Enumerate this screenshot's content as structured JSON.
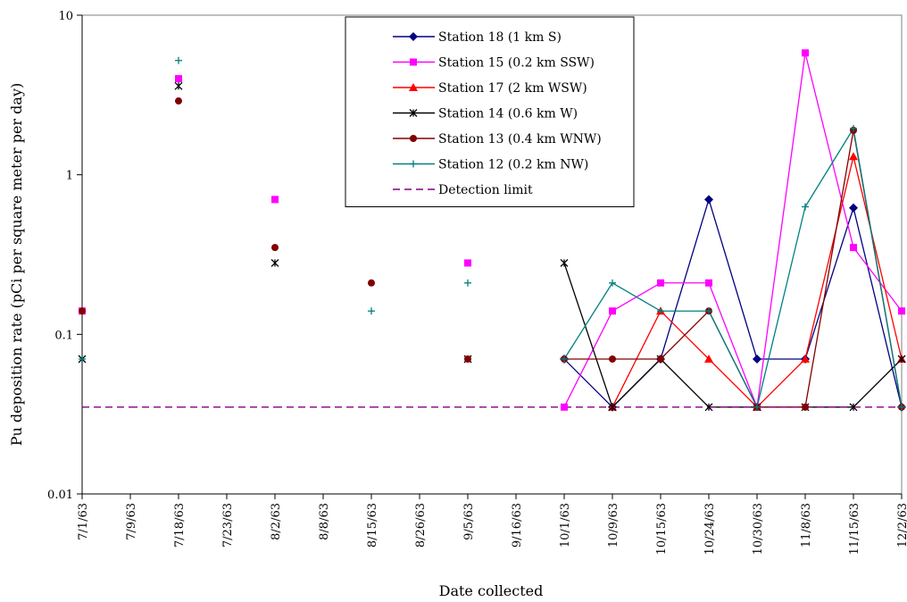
{
  "chart_data": {
    "type": "line",
    "title": "",
    "xlabel": "Date collected",
    "ylabel": "Pu deposition rate (pCi  per square meter per day)",
    "y_scale": "log",
    "ylim": [
      0.01,
      10
    ],
    "y_ticks": [
      "0.01",
      "0.1",
      "1",
      "10"
    ],
    "grid": false,
    "legend_position": "top-right",
    "categories": [
      "7/1/63",
      "7/9/63",
      "7/18/63",
      "7/23/63",
      "8/2/63",
      "8/8/63",
      "8/15/63",
      "8/26/63",
      "9/5/63",
      "9/16/63",
      "10/1/63",
      "10/9/63",
      "10/15/63",
      "10/24/63",
      "10/30/63",
      "11/8/63",
      "11/15/63",
      "12/2/63"
    ],
    "series": [
      {
        "name": "Station 18 (1 km S)",
        "color": "#000080",
        "marker": "diamond",
        "dash": "",
        "values": [
          null,
          null,
          null,
          null,
          null,
          null,
          null,
          null,
          null,
          null,
          0.07,
          0.035,
          0.07,
          0.7,
          0.07,
          0.07,
          0.62,
          0.035
        ]
      },
      {
        "name": "Station 15 (0.2 km SSW)",
        "color": "#ff00ff",
        "marker": "square",
        "dash": "",
        "values": [
          0.14,
          null,
          4.0,
          null,
          0.7,
          null,
          null,
          null,
          0.28,
          null,
          0.035,
          0.14,
          0.21,
          0.21,
          0.035,
          5.8,
          0.35,
          0.14
        ]
      },
      {
        "name": "Station 17 (2 km WSW)",
        "color": "#ff0000",
        "marker": "triangle",
        "dash": "",
        "values": [
          null,
          null,
          null,
          null,
          null,
          null,
          null,
          null,
          null,
          null,
          null,
          0.035,
          0.14,
          0.07,
          0.035,
          0.07,
          1.3,
          0.07
        ]
      },
      {
        "name": "Station 14 (0.6 km W)",
        "color": "#000000",
        "marker": "asterisk",
        "dash": "",
        "values": [
          0.07,
          null,
          3.6,
          null,
          0.28,
          null,
          null,
          null,
          0.07,
          null,
          0.28,
          0.035,
          0.07,
          0.035,
          0.035,
          0.035,
          0.035,
          0.07
        ]
      },
      {
        "name": "Station 13 (0.4 km WNW)",
        "color": "#800000",
        "marker": "circle",
        "dash": "",
        "values": [
          0.14,
          null,
          2.9,
          null,
          0.35,
          null,
          0.21,
          null,
          0.07,
          null,
          0.07,
          0.07,
          0.07,
          0.14,
          0.035,
          0.035,
          1.9,
          0.035
        ]
      },
      {
        "name": "Station 12 (0.2 km NW)",
        "color": "#008080",
        "marker": "plus",
        "dash": "",
        "values": [
          0.07,
          null,
          5.2,
          null,
          null,
          null,
          0.14,
          null,
          0.21,
          null,
          0.07,
          0.21,
          0.14,
          0.14,
          0.035,
          0.63,
          1.95,
          0.035
        ]
      },
      {
        "name": "Detection limit",
        "color": "#800080",
        "marker": "none",
        "dash": "8,5",
        "values": [
          0.035,
          0.035,
          0.035,
          0.035,
          0.035,
          0.035,
          0.035,
          0.035,
          0.035,
          0.035,
          0.035,
          0.035,
          0.035,
          0.035,
          0.035,
          0.035,
          0.035,
          0.035
        ]
      }
    ]
  }
}
